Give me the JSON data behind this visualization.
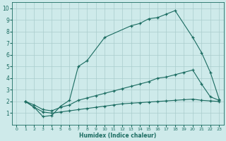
{
  "bg_color": "#ceeaea",
  "grid_color": "#aacccc",
  "line_color": "#1a6b60",
  "xlabel": "Humidex (Indice chaleur)",
  "xlim": [
    -0.5,
    23.5
  ],
  "ylim": [
    0,
    10.5
  ],
  "xticks": [
    0,
    1,
    2,
    3,
    4,
    5,
    6,
    7,
    8,
    9,
    10,
    11,
    12,
    13,
    14,
    15,
    16,
    17,
    18,
    19,
    20,
    21,
    22,
    23
  ],
  "yticks": [
    1,
    2,
    3,
    4,
    5,
    6,
    7,
    8,
    9,
    10
  ],
  "line1_x": [
    1,
    2,
    3,
    4,
    5,
    6,
    7,
    8,
    10,
    13,
    14,
    15,
    16,
    17,
    18,
    20,
    21,
    22,
    23
  ],
  "line1_y": [
    2.0,
    1.5,
    0.7,
    0.8,
    1.6,
    2.1,
    5.0,
    5.5,
    7.5,
    8.5,
    8.7,
    9.1,
    9.2,
    9.5,
    9.8,
    7.5,
    6.2,
    4.5,
    2.2
  ],
  "line2_x": [
    1,
    2,
    3,
    4,
    5,
    6,
    7,
    8,
    9,
    10,
    11,
    12,
    13,
    14,
    15,
    16,
    17,
    18,
    19,
    20,
    21,
    22,
    23
  ],
  "line2_y": [
    2.0,
    1.7,
    1.3,
    1.2,
    1.5,
    1.7,
    2.1,
    2.3,
    2.5,
    2.7,
    2.9,
    3.1,
    3.3,
    3.5,
    3.7,
    4.0,
    4.1,
    4.3,
    4.5,
    4.7,
    3.5,
    2.4,
    2.1
  ],
  "line3_x": [
    1,
    2,
    3,
    4,
    5,
    6,
    7,
    8,
    9,
    10,
    11,
    12,
    13,
    14,
    15,
    16,
    17,
    18,
    19,
    20,
    21,
    22,
    23
  ],
  "line3_y": [
    2.0,
    1.5,
    1.1,
    1.0,
    1.1,
    1.2,
    1.3,
    1.4,
    1.5,
    1.6,
    1.7,
    1.8,
    1.85,
    1.9,
    1.95,
    2.0,
    2.05,
    2.1,
    2.15,
    2.2,
    2.1,
    2.05,
    2.0
  ]
}
